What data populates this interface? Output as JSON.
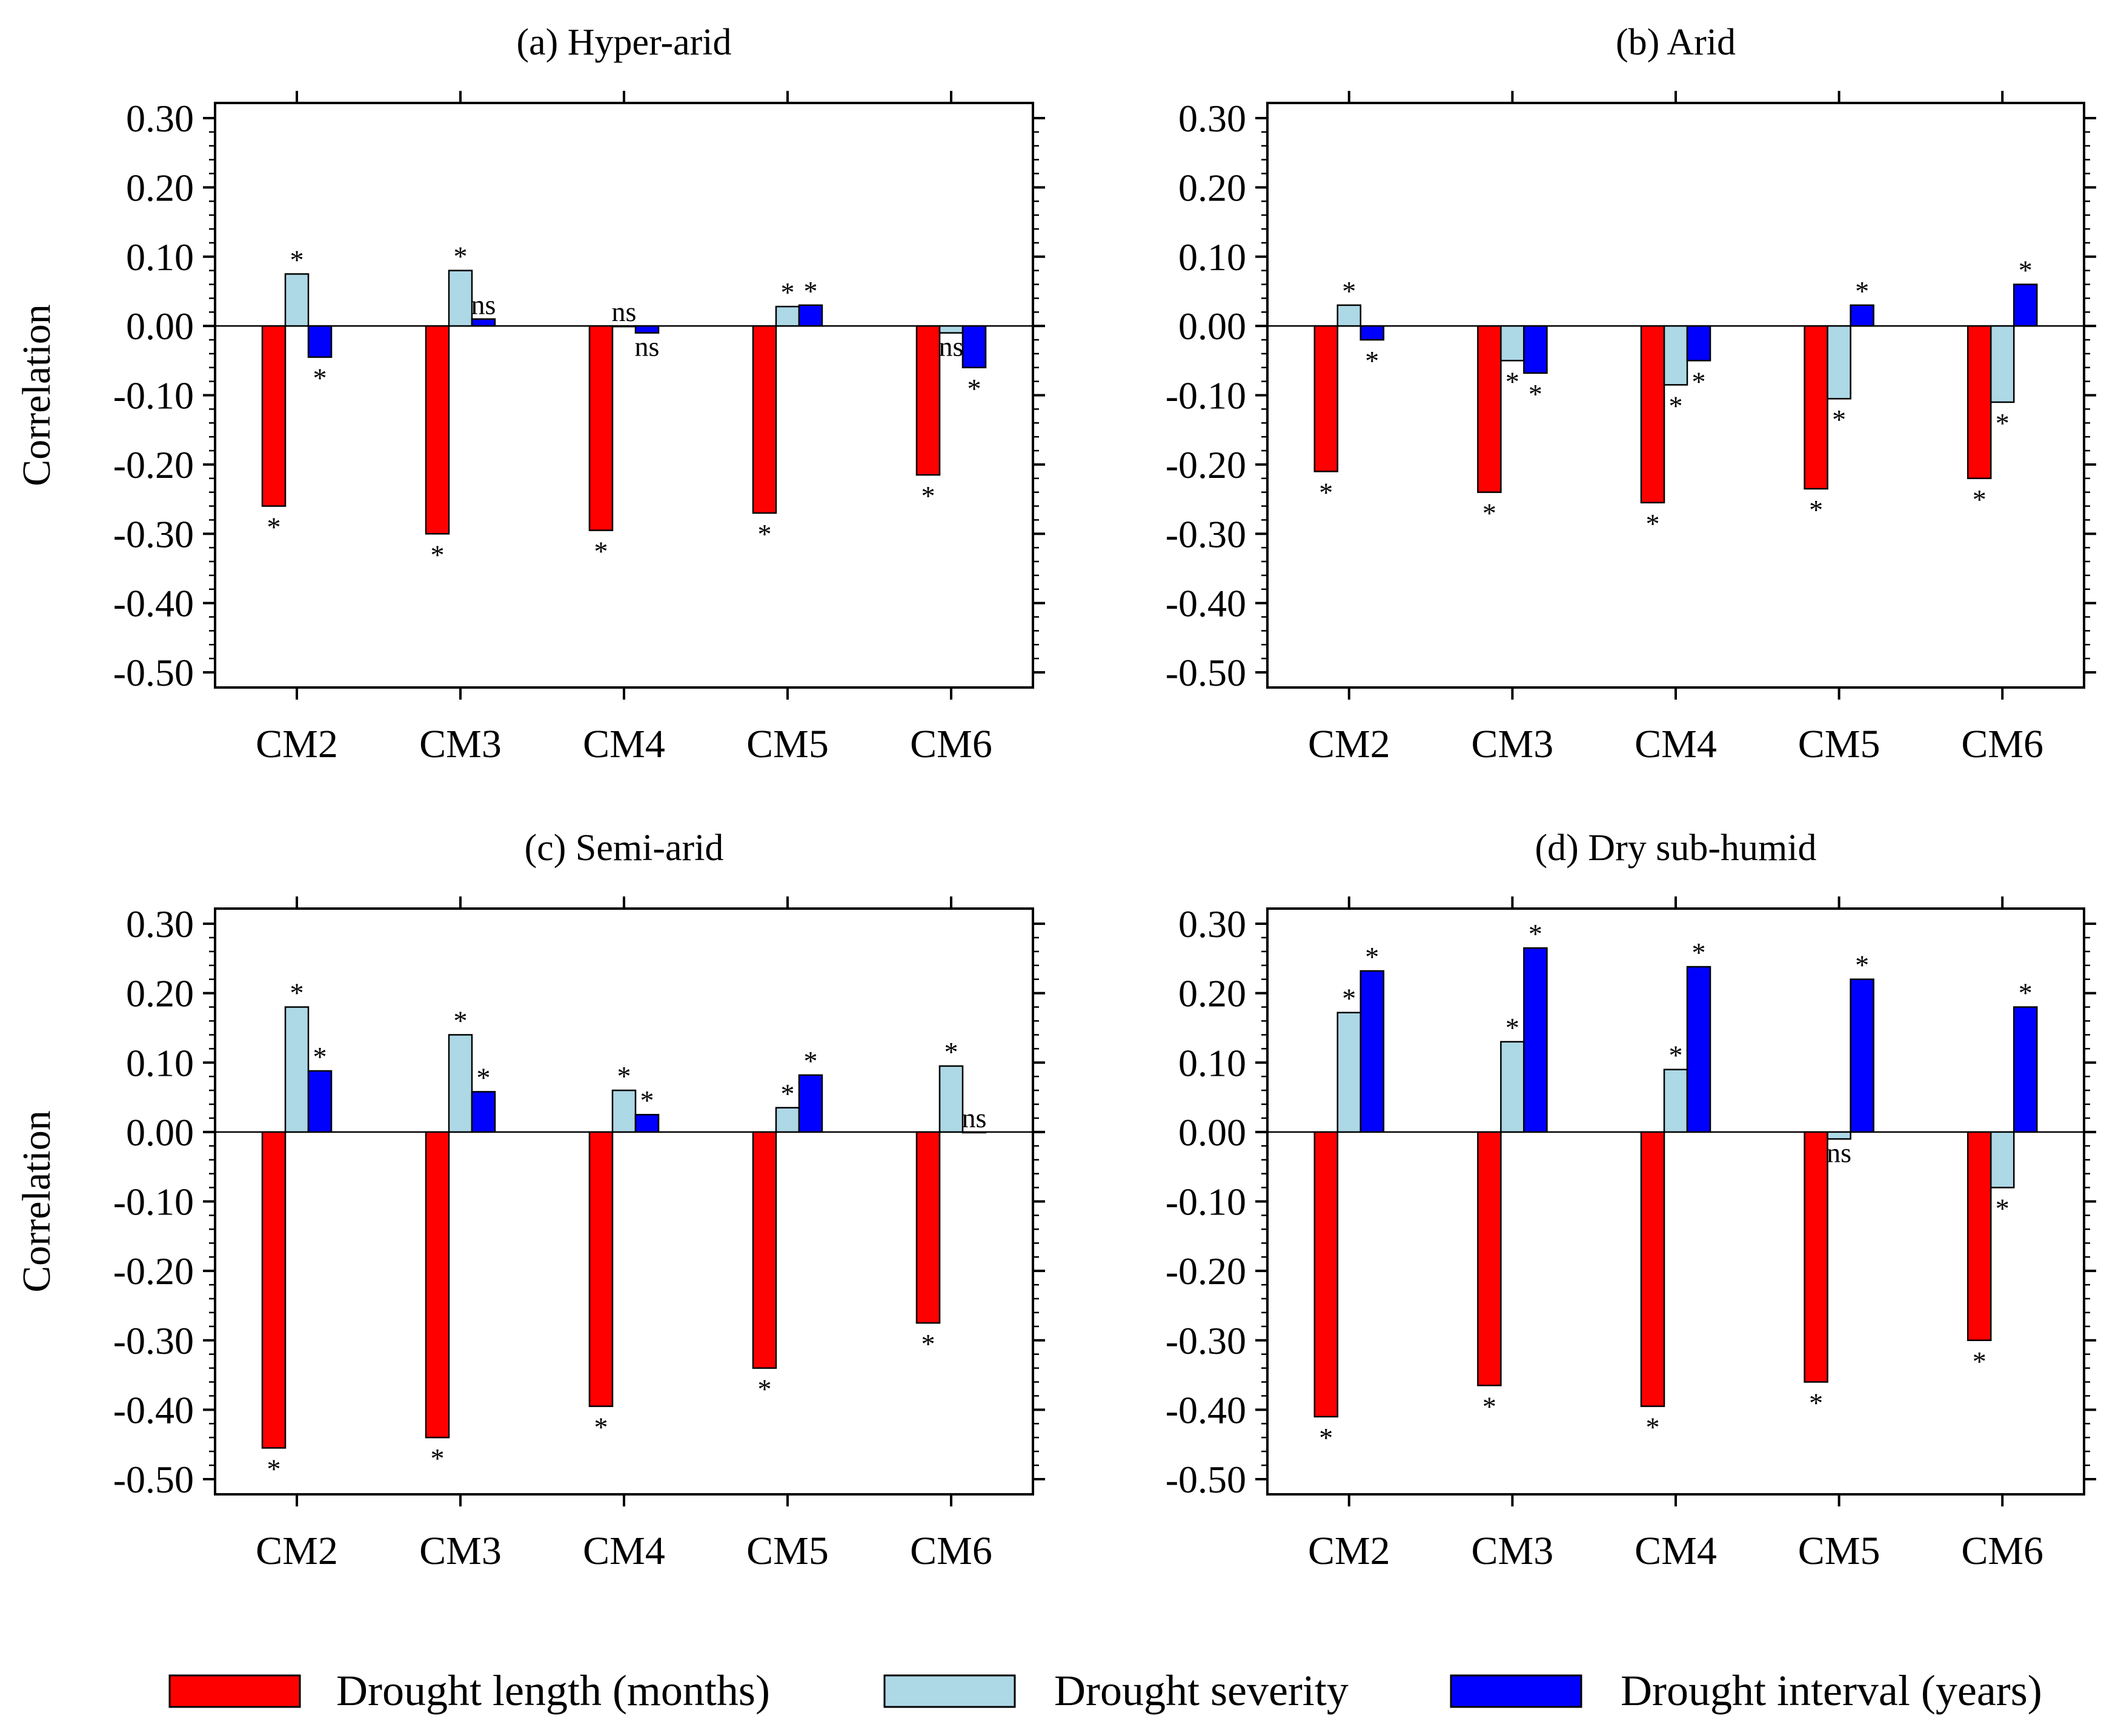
{
  "legend": [
    {
      "key": "length",
      "label": "Drought length (months)",
      "color": "#ff0000"
    },
    {
      "key": "severity",
      "label": "Drought severity",
      "color": "#add8e6"
    },
    {
      "key": "interval",
      "label": "Drought interval (years)",
      "color": "#0000ff"
    }
  ],
  "chart_data": [
    {
      "type": "bar",
      "title": "(a) Hyper-arid",
      "ylabel": "Correlation",
      "ylim": [
        -0.5,
        0.3
      ],
      "yticks": [
        "0.30",
        "0.20",
        "0.10",
        "0.00",
        "-0.10",
        "-0.20",
        "-0.30",
        "-0.40",
        "-0.50"
      ],
      "categories": [
        "CM2",
        "CM3",
        "CM4",
        "CM5",
        "CM6"
      ],
      "series": [
        {
          "name": "Drought length (months)",
          "values": [
            -0.26,
            -0.3,
            -0.295,
            -0.27,
            -0.215
          ],
          "signif": [
            "*",
            "*",
            "*",
            "*",
            "*"
          ]
        },
        {
          "name": "Drought severity",
          "values": [
            0.075,
            0.08,
            0.0,
            0.028,
            -0.01
          ],
          "signif": [
            "*",
            "*",
            "ns",
            "*",
            "ns"
          ]
        },
        {
          "name": "Drought interval (years)",
          "values": [
            -0.045,
            0.01,
            -0.01,
            0.03,
            -0.06
          ],
          "signif": [
            "*",
            "ns",
            "ns",
            "*",
            "*"
          ]
        }
      ]
    },
    {
      "type": "bar",
      "title": "(b) Arid",
      "ylabel": "",
      "ylim": [
        -0.5,
        0.3
      ],
      "yticks": [
        "0.30",
        "0.20",
        "0.10",
        "0.00",
        "-0.10",
        "-0.20",
        "-0.30",
        "-0.40",
        "-0.50"
      ],
      "categories": [
        "CM2",
        "CM3",
        "CM4",
        "CM5",
        "CM6"
      ],
      "series": [
        {
          "name": "Drought length (months)",
          "values": [
            -0.21,
            -0.24,
            -0.255,
            -0.235,
            -0.22
          ],
          "signif": [
            "*",
            "*",
            "*",
            "*",
            "*"
          ]
        },
        {
          "name": "Drought severity",
          "values": [
            0.03,
            -0.05,
            -0.085,
            -0.105,
            -0.11
          ],
          "signif": [
            "*",
            "*",
            "*",
            "*",
            "*"
          ]
        },
        {
          "name": "Drought interval (years)",
          "values": [
            -0.02,
            -0.068,
            -0.05,
            0.03,
            0.06
          ],
          "signif": [
            "*",
            "*",
            "*",
            "*",
            "*"
          ]
        }
      ]
    },
    {
      "type": "bar",
      "title": "(c) Semi-arid",
      "ylabel": "Correlation",
      "ylim": [
        -0.5,
        0.3
      ],
      "yticks": [
        "0.30",
        "0.20",
        "0.10",
        "0.00",
        "-0.10",
        "-0.20",
        "-0.30",
        "-0.40",
        "-0.50"
      ],
      "categories": [
        "CM2",
        "CM3",
        "CM4",
        "CM5",
        "CM6"
      ],
      "series": [
        {
          "name": "Drought length (months)",
          "values": [
            -0.455,
            -0.44,
            -0.395,
            -0.34,
            -0.275
          ],
          "signif": [
            "*",
            "*",
            "*",
            "*",
            "*"
          ]
        },
        {
          "name": "Drought severity",
          "values": [
            0.18,
            0.14,
            0.06,
            0.035,
            0.095
          ],
          "signif": [
            "*",
            "*",
            "*",
            "*",
            "*"
          ]
        },
        {
          "name": "Drought interval (years)",
          "values": [
            0.088,
            0.058,
            0.025,
            0.082,
            0.0
          ],
          "signif": [
            "*",
            "*",
            "*",
            "*",
            "ns"
          ]
        }
      ]
    },
    {
      "type": "bar",
      "title": "(d) Dry sub-humid",
      "ylabel": "",
      "ylim": [
        -0.5,
        0.3
      ],
      "yticks": [
        "0.30",
        "0.20",
        "0.10",
        "0.00",
        "-0.10",
        "-0.20",
        "-0.30",
        "-0.40",
        "-0.50"
      ],
      "categories": [
        "CM2",
        "CM3",
        "CM4",
        "CM5",
        "CM6"
      ],
      "series": [
        {
          "name": "Drought length (months)",
          "values": [
            -0.41,
            -0.365,
            -0.395,
            -0.36,
            -0.3
          ],
          "signif": [
            "*",
            "*",
            "*",
            "*",
            "*"
          ]
        },
        {
          "name": "Drought severity",
          "values": [
            0.172,
            0.13,
            0.09,
            -0.01,
            -0.08
          ],
          "signif": [
            "*",
            "*",
            "*",
            "ns",
            "*"
          ]
        },
        {
          "name": "Drought interval (years)",
          "values": [
            0.232,
            0.265,
            0.238,
            0.22,
            0.18
          ],
          "signif": [
            "*",
            "*",
            "*",
            "*",
            "*"
          ]
        }
      ]
    }
  ]
}
